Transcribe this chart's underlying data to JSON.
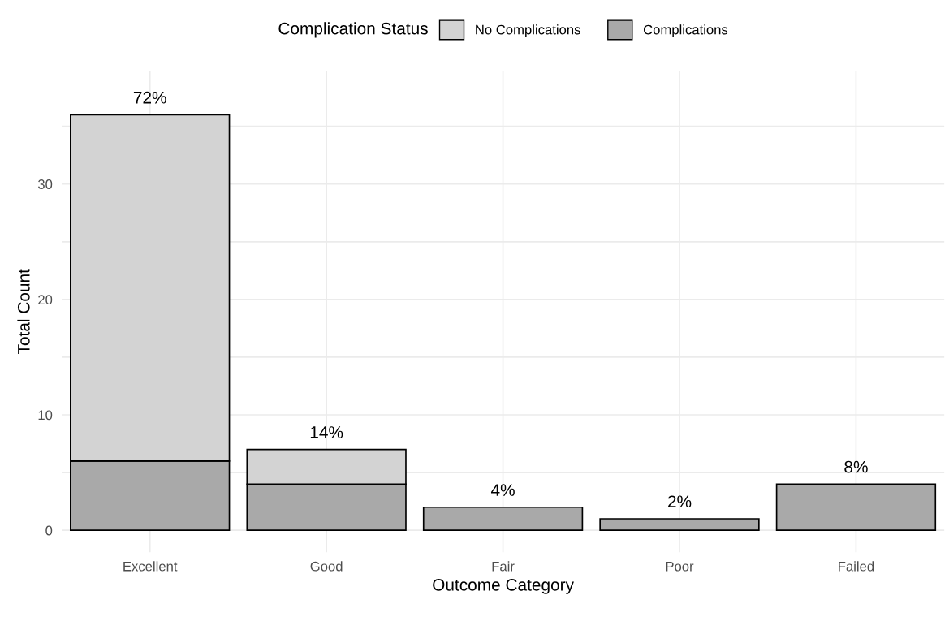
{
  "chart_data": {
    "type": "bar",
    "stacked": true,
    "xlabel": "Outcome Category",
    "ylabel": "Total Count",
    "legend_title": "Complication Status",
    "categories": [
      "Excellent",
      "Good",
      "Fair",
      "Poor",
      "Failed"
    ],
    "series": [
      {
        "name": "Complications",
        "color": "#a9a9a9",
        "values": [
          6,
          4,
          2,
          1,
          4
        ]
      },
      {
        "name": "No Complications",
        "color": "#d3d3d3",
        "values": [
          30,
          3,
          0,
          0,
          0
        ]
      }
    ],
    "annotations": [
      {
        "text": "72%",
        "x": "Excellent",
        "y": 36
      },
      {
        "text": "14%",
        "x": "Good",
        "y": 7
      },
      {
        "text": "4%",
        "x": "Fair",
        "y": 2
      },
      {
        "text": "2%",
        "x": "Poor",
        "y": 1
      },
      {
        "text": "8%",
        "x": "Failed",
        "y": 4
      }
    ],
    "ylim": [
      -1.9,
      39.8
    ],
    "yticks": [
      0,
      {
        "value": 5,
        "label": null
      },
      10,
      {
        "value": 15,
        "label": null
      },
      20,
      {
        "value": 25,
        "label": null
      },
      30,
      {
        "value": 35,
        "label": null
      }
    ],
    "grid": true,
    "legend": "top"
  }
}
